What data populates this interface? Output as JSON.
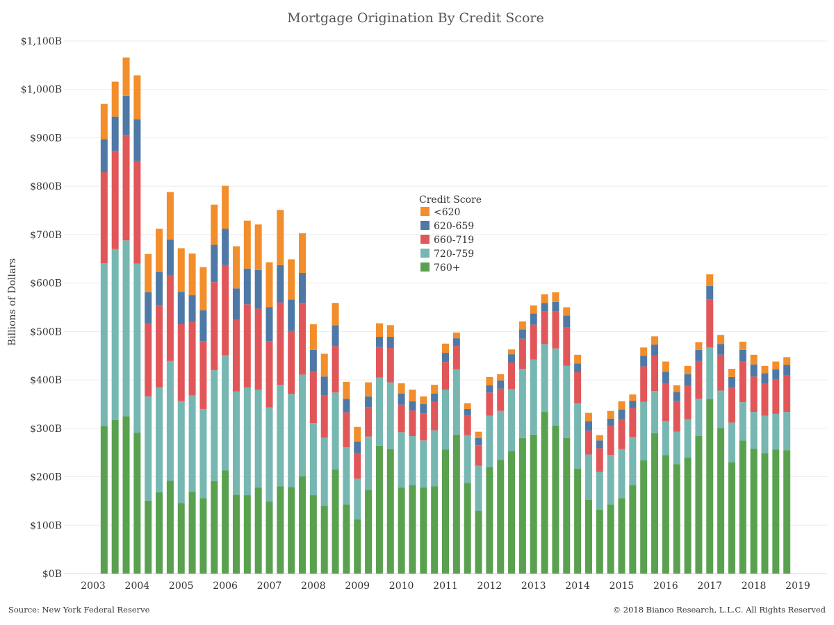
{
  "chart_data": {
    "type": "bar",
    "stacked": true,
    "title": "Mortgage Origination By Credit Score",
    "ylabel": "Billions of Dollars",
    "ylim": [
      0,
      1100
    ],
    "ytick_values": [
      0,
      100,
      200,
      300,
      400,
      500,
      600,
      700,
      800,
      900,
      1000,
      1100
    ],
    "ytick_labels": [
      "$0B",
      "$100B",
      "$200B",
      "$300B",
      "$400B",
      "$500B",
      "$600B",
      "$700B",
      "$800B",
      "$900B",
      "$1,000B",
      "$1,100B"
    ],
    "xtick_labels": [
      "2003",
      "2004",
      "2005",
      "2006",
      "2007",
      "2008",
      "2009",
      "2010",
      "2011",
      "2012",
      "2013",
      "2014",
      "2015",
      "2016",
      "2017",
      "2018",
      "2019"
    ],
    "xrange": [
      2003,
      2019
    ],
    "x": [
      2003.25,
      2003.5,
      2003.75,
      2004.0,
      2004.25,
      2004.5,
      2004.75,
      2005.0,
      2005.25,
      2005.5,
      2005.75,
      2006.0,
      2006.25,
      2006.5,
      2006.75,
      2007.0,
      2007.25,
      2007.5,
      2007.75,
      2008.0,
      2008.25,
      2008.5,
      2008.75,
      2009.0,
      2009.25,
      2009.5,
      2009.75,
      2010.0,
      2010.25,
      2010.5,
      2010.75,
      2011.0,
      2011.25,
      2011.5,
      2011.75,
      2012.0,
      2012.25,
      2012.5,
      2012.75,
      2013.0,
      2013.25,
      2013.5,
      2013.75,
      2014.0,
      2014.25,
      2014.5,
      2014.75,
      2015.0,
      2015.25,
      2015.5,
      2015.75,
      2016.0,
      2016.25,
      2016.5,
      2016.75,
      2017.0,
      2017.25,
      2017.5,
      2017.75,
      2018.0,
      2018.25,
      2018.5,
      2018.75
    ],
    "grid": "horizontal",
    "legend_title": "Credit Score",
    "legend_position": "center",
    "series": [
      {
        "name": "760+",
        "color": "#59a14f",
        "values": [
          305,
          317,
          325,
          291,
          151,
          168,
          192,
          146,
          169,
          156,
          191,
          213,
          163,
          162,
          178,
          149,
          180,
          179,
          201,
          162,
          140,
          215,
          143,
          112,
          173,
          264,
          257,
          178,
          183,
          178,
          180,
          256,
          287,
          187,
          130,
          220,
          235,
          253,
          280,
          287,
          334,
          306,
          280,
          217,
          152,
          132,
          143,
          156,
          183,
          234,
          290,
          245,
          226,
          240,
          284,
          360,
          301,
          230,
          275,
          258,
          249,
          256,
          255
        ]
      },
      {
        "name": "720-759",
        "color": "#76b7b2",
        "values": [
          336,
          353,
          363,
          349,
          215,
          217,
          247,
          210,
          199,
          184,
          229,
          238,
          213,
          222,
          202,
          194,
          210,
          192,
          210,
          149,
          141,
          159,
          118,
          84,
          110,
          141,
          138,
          114,
          101,
          97,
          116,
          124,
          135,
          99,
          93,
          106,
          101,
          128,
          143,
          155,
          140,
          159,
          149,
          135,
          94,
          78,
          102,
          101,
          99,
          121,
          87,
          70,
          67,
          79,
          77,
          107,
          77,
          82,
          79,
          76,
          77,
          74,
          79
        ]
      },
      {
        "name": "660-719",
        "color": "#e15759",
        "values": [
          188,
          203,
          218,
          212,
          151,
          169,
          177,
          159,
          152,
          140,
          182,
          186,
          148,
          172,
          167,
          137,
          170,
          130,
          148,
          106,
          87,
          96,
          72,
          53,
          61,
          63,
          71,
          57,
          53,
          56,
          59,
          57,
          48,
          40,
          42,
          48,
          46,
          55,
          62,
          72,
          67,
          76,
          79,
          64,
          49,
          49,
          60,
          61,
          60,
          73,
          74,
          77,
          63,
          69,
          78,
          99,
          74,
          72,
          84,
          73,
          66,
          71,
          75
        ]
      },
      {
        "name": "620-659",
        "color": "#4e79a7",
        "values": [
          68,
          71,
          81,
          86,
          64,
          69,
          74,
          67,
          55,
          64,
          77,
          75,
          65,
          74,
          80,
          70,
          77,
          65,
          62,
          45,
          39,
          43,
          28,
          24,
          22,
          21,
          23,
          23,
          19,
          19,
          17,
          19,
          16,
          14,
          15,
          15,
          17,
          17,
          19,
          23,
          18,
          20,
          25,
          18,
          20,
          16,
          15,
          21,
          15,
          22,
          22,
          25,
          19,
          24,
          23,
          28,
          22,
          22,
          24,
          25,
          22,
          21,
          22
        ]
      },
      {
        "name": "<620",
        "color": "#f28e2b",
        "values": [
          73,
          72,
          79,
          91,
          79,
          89,
          98,
          90,
          86,
          89,
          83,
          89,
          87,
          99,
          94,
          93,
          114,
          83,
          82,
          53,
          47,
          46,
          35,
          30,
          29,
          28,
          24,
          21,
          24,
          16,
          18,
          19,
          12,
          12,
          13,
          17,
          13,
          10,
          17,
          17,
          18,
          20,
          17,
          18,
          17,
          11,
          16,
          17,
          13,
          17,
          17,
          21,
          14,
          17,
          16,
          24,
          19,
          17,
          17,
          20,
          15,
          16,
          16
        ]
      }
    ]
  },
  "footer": {
    "source": "Source: New York Federal Reserve",
    "copyright": "© 2018 Bianco Research, L.L.C. All Rights Reserved"
  }
}
